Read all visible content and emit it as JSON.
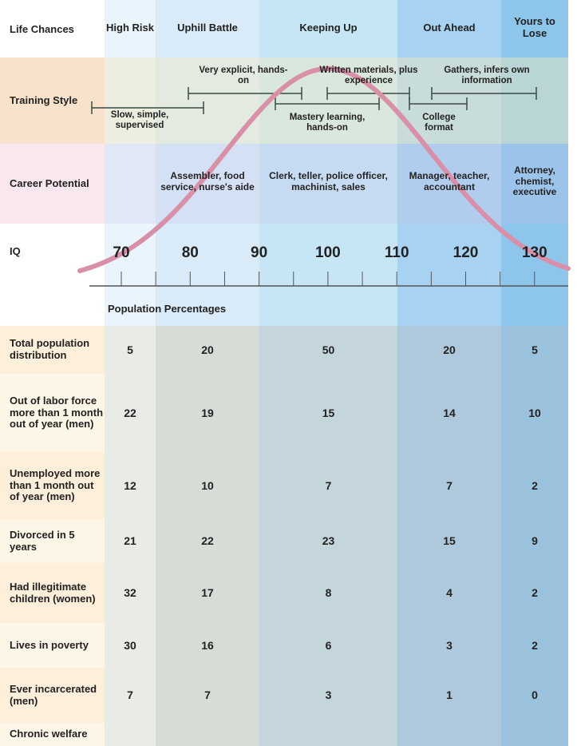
{
  "header": {
    "label": "Life Chances",
    "columns": [
      "High Risk",
      "Uphill Battle",
      "Keeping Up",
      "Out Ahead",
      "Yours to Lose"
    ]
  },
  "training": {
    "label": "Training Style",
    "items": [
      "Slow, simple, supervised",
      "Very explicit, hands-on",
      "Mastery learning, hands-on",
      "Written materials, plus experience",
      "College format",
      "Gathers, infers own information"
    ]
  },
  "career": {
    "label": "Career Potential",
    "items": [
      "",
      "Assembler, food service, nurse's aide",
      "Clerk, teller, police officer, machinist, sales",
      "Manager, teacher, accountant",
      "Attorney, chemist, executive"
    ]
  },
  "chart_data": {
    "type": "table",
    "title": "Population Percentages",
    "iq_label": "IQ",
    "iq_ticks": [
      "70",
      "80",
      "90",
      "100",
      "110",
      "120",
      "130"
    ],
    "curve": {
      "type": "normal",
      "mean": 100,
      "sd": 15,
      "color": "#d98fa8"
    },
    "rows": [
      {
        "label": "Total population distribution",
        "values": [
          "5",
          "20",
          "50",
          "20",
          "5"
        ]
      },
      {
        "label": "Out of labor force more than 1 month out of year (men)",
        "values": [
          "22",
          "19",
          "15",
          "14",
          "10"
        ]
      },
      {
        "label": "Unemployed more than 1 month out of year (men)",
        "values": [
          "12",
          "10",
          "7",
          "7",
          "2"
        ]
      },
      {
        "label": "Divorced in 5 years",
        "values": [
          "21",
          "22",
          "23",
          "15",
          "9"
        ]
      },
      {
        "label": "Had illegitimate children (women)",
        "values": [
          "32",
          "17",
          "8",
          "4",
          "2"
        ]
      },
      {
        "label": "Lives in poverty",
        "values": [
          "30",
          "16",
          "6",
          "3",
          "2"
        ]
      },
      {
        "label": "Ever incarcerated (men)",
        "values": [
          "7",
          "7",
          "3",
          "1",
          "0"
        ]
      },
      {
        "label": "Chronic welfare",
        "values": [
          "",
          "",
          "",
          "",
          ""
        ]
      }
    ]
  }
}
